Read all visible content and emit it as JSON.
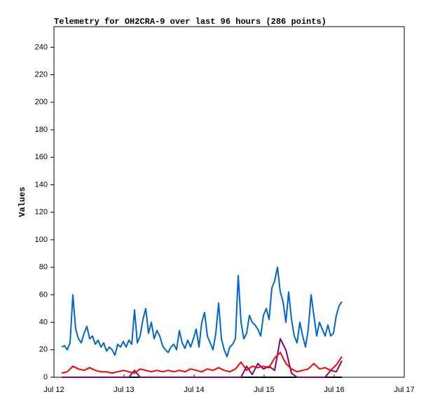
{
  "chart_data": {
    "type": "line",
    "title": "Telemetry for OH2CRA-9 over last 96 hours (286 points)",
    "y_label": "Values",
    "xlim": [
      12,
      17
    ],
    "xticks": [
      {
        "value": 12,
        "label": "Jul 12"
      },
      {
        "value": 13,
        "label": "Jul 13"
      },
      {
        "value": 14,
        "label": "Jul 14"
      },
      {
        "value": 15,
        "label": "Jul 15"
      },
      {
        "value": 16,
        "label": "Jul 16"
      },
      {
        "value": 17,
        "label": "Jul 17"
      }
    ],
    "ylim": [
      0,
      255
    ],
    "yticks": [
      0,
      20,
      40,
      60,
      80,
      100,
      120,
      140,
      160,
      180,
      200,
      220,
      240
    ],
    "grid": false,
    "series": [
      {
        "color": "#000000",
        "x": [
          12.11,
          16.11
        ],
        "values": [
          0,
          0
        ]
      },
      {
        "color": "#800080",
        "x": [
          12.11,
          12.19,
          12.27,
          12.35,
          12.43,
          12.51,
          12.59,
          12.67,
          12.75,
          12.83,
          12.91,
          12.99,
          13.07,
          13.15,
          13.23,
          13.31,
          13.39,
          13.47,
          13.55,
          13.63,
          13.71,
          13.79,
          13.87,
          13.95,
          14.03,
          14.11,
          14.19,
          14.27,
          14.35,
          14.43,
          14.51,
          14.59,
          14.67,
          14.75,
          14.83,
          14.91,
          14.99,
          15.07,
          15.15,
          15.23,
          15.31,
          15.39,
          15.47,
          15.55,
          15.63,
          15.71,
          15.79,
          15.87,
          15.95,
          16.03,
          16.11
        ],
        "values": [
          0,
          0,
          0,
          0,
          0,
          0,
          0,
          0,
          0,
          0,
          0,
          0,
          0,
          5,
          0,
          0,
          0,
          0,
          0,
          0,
          0,
          0,
          0,
          0,
          0,
          0,
          0,
          0,
          0,
          0,
          0,
          0,
          0,
          8,
          2,
          10,
          6,
          8,
          5,
          28,
          20,
          3,
          0,
          0,
          0,
          0,
          0,
          0,
          5,
          4,
          12
        ]
      },
      {
        "color": "#ff0000",
        "x": [
          12.11,
          12.19,
          12.27,
          12.35,
          12.43,
          12.51,
          12.59,
          12.67,
          12.75,
          12.83,
          12.91,
          12.99,
          13.07,
          13.15,
          13.23,
          13.31,
          13.39,
          13.47,
          13.55,
          13.63,
          13.71,
          13.79,
          13.87,
          13.95,
          14.03,
          14.11,
          14.19,
          14.27,
          14.35,
          14.43,
          14.51,
          14.59,
          14.67,
          14.75,
          14.83,
          14.91,
          14.99,
          15.07,
          15.15,
          15.23,
          15.31,
          15.39,
          15.47,
          15.55,
          15.63,
          15.71,
          15.79,
          15.87,
          15.95,
          16.03,
          16.11
        ],
        "values": [
          3,
          4,
          8,
          6,
          5,
          7,
          5,
          4,
          4,
          3,
          4,
          5,
          4,
          3,
          6,
          5,
          4,
          5,
          4,
          5,
          4,
          5,
          4,
          6,
          5,
          4,
          6,
          5,
          7,
          5,
          4,
          6,
          11,
          5,
          8,
          7,
          8,
          7,
          14,
          18,
          10,
          6,
          4,
          5,
          6,
          10,
          6,
          7,
          5,
          9,
          15
        ]
      },
      {
        "color": "#0066cc",
        "x": [
          12.11,
          12.15,
          12.19,
          12.23,
          12.27,
          12.31,
          12.35,
          12.39,
          12.43,
          12.47,
          12.51,
          12.55,
          12.59,
          12.63,
          12.67,
          12.71,
          12.75,
          12.79,
          12.83,
          12.87,
          12.91,
          12.95,
          12.99,
          13.03,
          13.07,
          13.11,
          13.15,
          13.19,
          13.23,
          13.27,
          13.31,
          13.35,
          13.39,
          13.43,
          13.47,
          13.51,
          13.55,
          13.59,
          13.63,
          13.67,
          13.71,
          13.75,
          13.79,
          13.83,
          13.87,
          13.91,
          13.95,
          13.99,
          14.03,
          14.07,
          14.11,
          14.15,
          14.19,
          14.23,
          14.27,
          14.31,
          14.35,
          14.39,
          14.43,
          14.47,
          14.51,
          14.55,
          14.59,
          14.63,
          14.67,
          14.71,
          14.75,
          14.79,
          14.83,
          14.87,
          14.91,
          14.95,
          14.99,
          15.03,
          15.07,
          15.11,
          15.15,
          15.19,
          15.23,
          15.27,
          15.31,
          15.35,
          15.39,
          15.43,
          15.47,
          15.51,
          15.55,
          15.59,
          15.63,
          15.67,
          15.71,
          15.75,
          15.79,
          15.83,
          15.87,
          15.91,
          15.95,
          15.99,
          16.03,
          16.07,
          16.11
        ],
        "values": [
          22,
          23,
          20,
          25,
          60,
          35,
          28,
          25,
          32,
          37,
          28,
          30,
          24,
          27,
          22,
          25,
          19,
          22,
          20,
          16,
          24,
          22,
          26,
          22,
          27,
          24,
          49,
          25,
          30,
          42,
          50,
          32,
          40,
          28,
          34,
          30,
          23,
          20,
          18,
          22,
          24,
          20,
          34,
          25,
          21,
          27,
          22,
          28,
          35,
          22,
          40,
          47,
          30,
          25,
          20,
          32,
          54,
          28,
          20,
          15,
          22,
          24,
          28,
          74,
          40,
          28,
          32,
          45,
          40,
          38,
          35,
          30,
          45,
          50,
          42,
          65,
          70,
          80,
          62,
          55,
          40,
          62,
          42,
          30,
          25,
          40,
          30,
          22,
          35,
          60,
          45,
          30,
          40,
          35,
          30,
          38,
          30,
          32,
          45,
          52,
          55
        ]
      }
    ]
  }
}
